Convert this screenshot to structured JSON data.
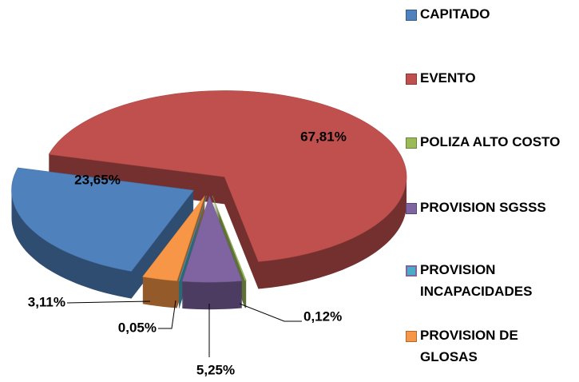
{
  "chart_data": {
    "type": "pie",
    "categories": [
      "CAPITADO",
      "EVENTO",
      "POLIZA ALTO COSTO",
      "PROVISION SGSSS",
      "PROVISION INCAPACIDADES",
      "PROVISION DE GLOSAS"
    ],
    "values": [
      23.65,
      67.81,
      0.12,
      5.25,
      0.05,
      3.11
    ],
    "value_labels": [
      "23,65%",
      "67,81%",
      "0,12%",
      "5,25%",
      "0,05%",
      "3,11%"
    ],
    "colors": [
      "#4f81bd",
      "#c0504d",
      "#9bbb59",
      "#8064a2",
      "#4bacc6",
      "#f79646"
    ],
    "legend": "right"
  }
}
